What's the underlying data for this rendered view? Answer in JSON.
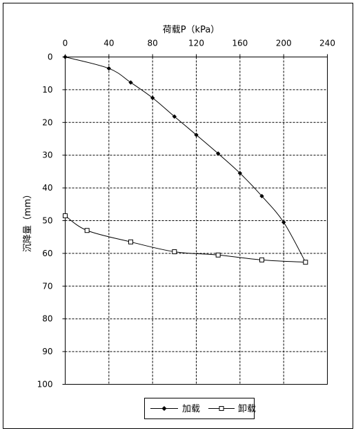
{
  "chart_data": {
    "type": "line",
    "title": "",
    "xlabel": "荷载P（kPa）",
    "ylabel": "沉降量（mm）",
    "x_axis_position": "top",
    "y_axis_inverted": true,
    "xlim": [
      0,
      240
    ],
    "ylim": [
      0,
      100
    ],
    "x_ticks": [
      "0",
      "40",
      "80",
      "120",
      "160",
      "200",
      "240"
    ],
    "y_ticks": [
      "0",
      "10",
      "20",
      "30",
      "40",
      "50",
      "60",
      "70",
      "80",
      "90",
      "100"
    ],
    "grid": "dashed",
    "legend_position": "bottom-center",
    "series": [
      {
        "name": "加载",
        "marker": "diamond-filled",
        "color": "#000000",
        "points": [
          {
            "x": 0,
            "y": 0
          },
          {
            "x": 40,
            "y": 3.5
          },
          {
            "x": 60,
            "y": 7.8
          },
          {
            "x": 80,
            "y": 12.5
          },
          {
            "x": 100,
            "y": 18.2
          },
          {
            "x": 120,
            "y": 23.8
          },
          {
            "x": 140,
            "y": 29.5
          },
          {
            "x": 160,
            "y": 35.5
          },
          {
            "x": 180,
            "y": 42.5
          },
          {
            "x": 200,
            "y": 50.5
          },
          {
            "x": 220,
            "y": 62.7
          }
        ]
      },
      {
        "name": "卸载",
        "marker": "square-open",
        "color": "#000000",
        "points": [
          {
            "x": 220,
            "y": 62.7
          },
          {
            "x": 180,
            "y": 62.0
          },
          {
            "x": 140,
            "y": 60.5
          },
          {
            "x": 100,
            "y": 59.5
          },
          {
            "x": 60,
            "y": 56.5
          },
          {
            "x": 20,
            "y": 53.0
          },
          {
            "x": 0,
            "y": 48.5
          }
        ]
      }
    ]
  }
}
